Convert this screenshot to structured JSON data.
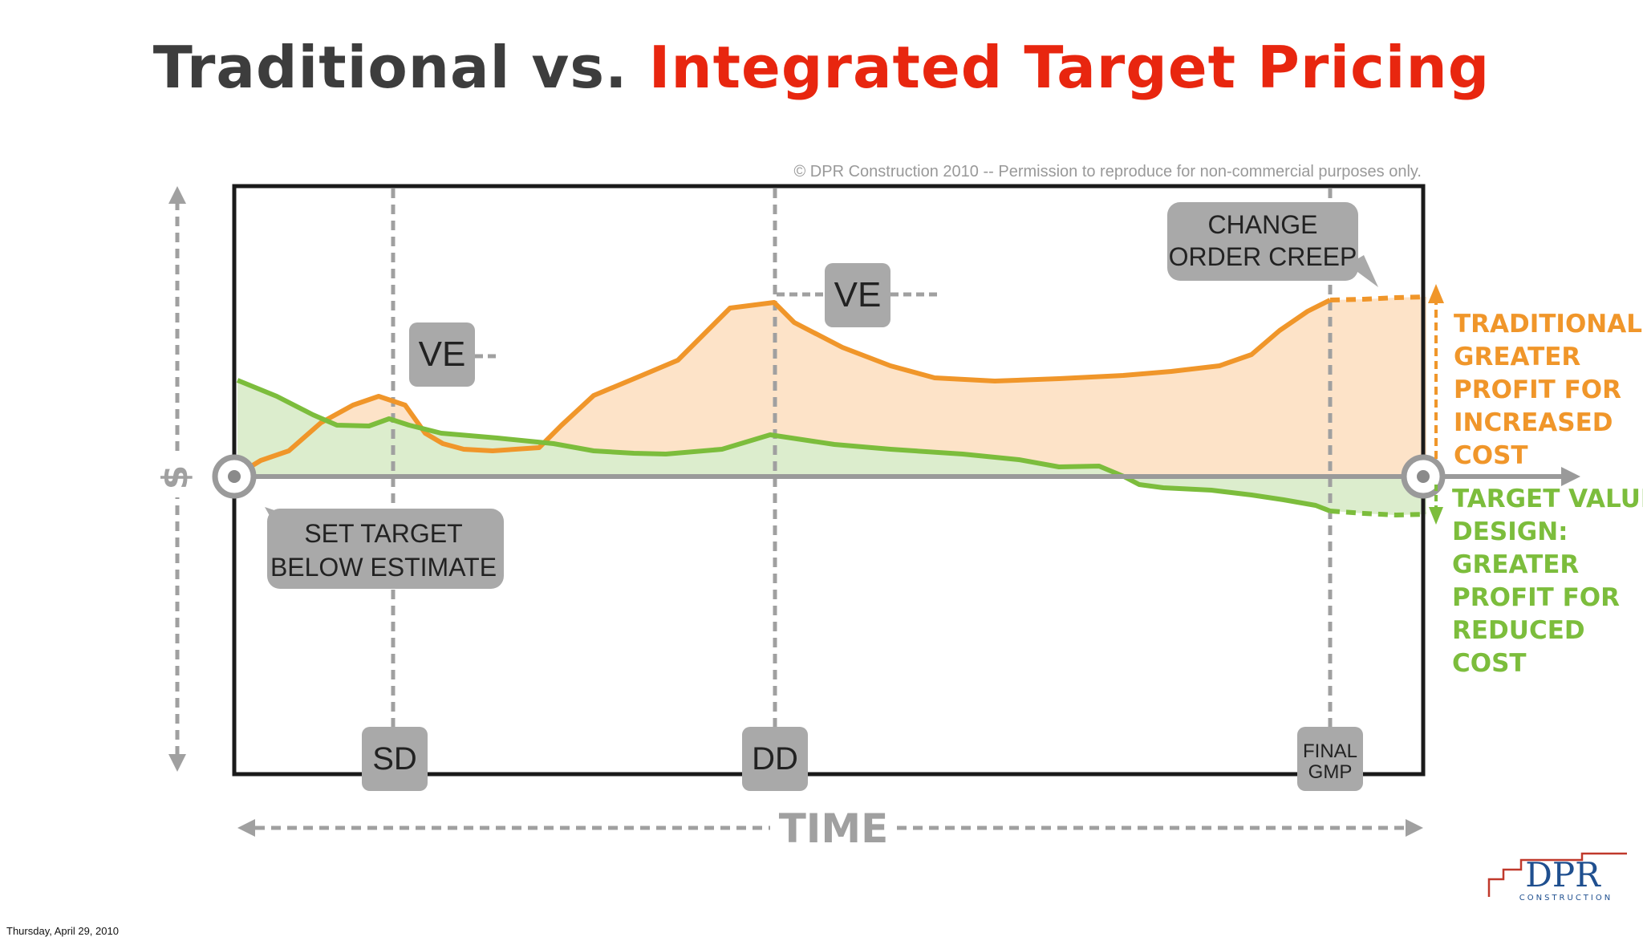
{
  "title": {
    "part1": "Traditional vs.",
    "part2": "Integrated Target Pricing"
  },
  "copyright": "© DPR Construction 2010 -- Permission to reproduce for non-commercial purposes only.",
  "y_axis_symbol": "$",
  "x_axis_label": "TIME",
  "callouts": {
    "ve1": "VE",
    "ve2": "VE",
    "set_target_line1": "SET TARGET",
    "set_target_line2": "BELOW ESTIMATE",
    "change_order_line1": "CHANGE",
    "change_order_line2": "ORDER CREEP"
  },
  "milestones": {
    "sd": "SD",
    "dd": "DD",
    "final_line1": "FINAL",
    "final_line2": "GMP"
  },
  "legend": {
    "traditional": [
      "TRADITIONAL:",
      "GREATER",
      "PROFIT FOR",
      "INCREASED",
      "COST"
    ],
    "target_value": [
      "TARGET VALUE",
      "DESIGN:",
      "GREATER",
      "PROFIT FOR",
      "REDUCED",
      "COST"
    ]
  },
  "colors": {
    "traditional": "#f0962a",
    "traditional_fill": "#fde3c8",
    "target_value": "#7cbd3c",
    "target_value_fill": "#dcedcd",
    "callout": "#a9a9a9",
    "axis": "#9a9a9a",
    "title_dark": "#3d3d3d",
    "title_red": "#e8260f"
  },
  "logo": {
    "text": "DPR",
    "subtext": "CONSTRUCTION"
  },
  "footer_date": "Thursday, April 29, 2010"
}
